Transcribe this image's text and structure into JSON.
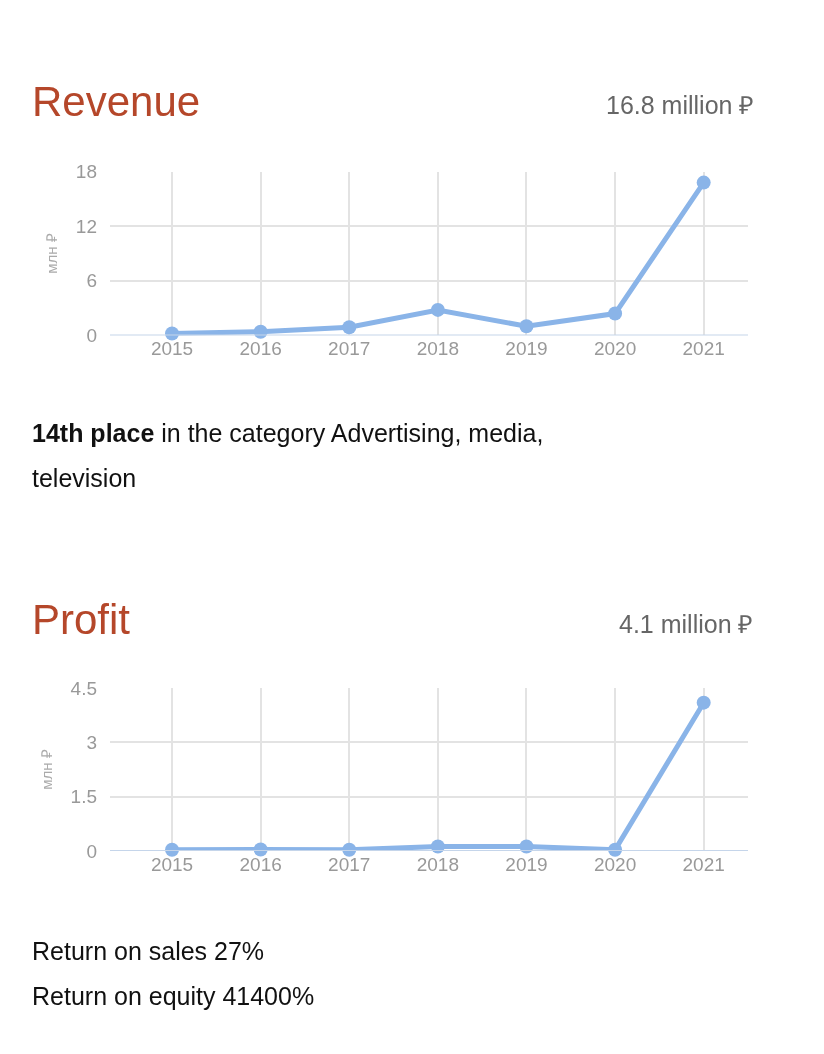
{
  "chart_data": [
    {
      "type": "line",
      "title": "Revenue",
      "subtitle": "16.8 million ₽",
      "ylabel": "млн ₽",
      "categories": [
        "2015",
        "2016",
        "2017",
        "2018",
        "2019",
        "2020",
        "2021"
      ],
      "series": [
        {
          "color": "#8ab4e8",
          "values": [
            0.2,
            0.4,
            0.9,
            2.8,
            1.0,
            2.4,
            16.8
          ]
        }
      ],
      "ylim": [
        0,
        18
      ],
      "yticks": [
        0,
        6,
        12,
        18
      ],
      "grid": true,
      "marker": "circle",
      "line_style": "solid",
      "annotations": [
        "14th place",
        "in the category Advertising, media, television"
      ]
    },
    {
      "type": "line",
      "title": "Profit",
      "subtitle": "4.1 million ₽",
      "ylabel": "млн ₽",
      "categories": [
        "2015",
        "2016",
        "2017",
        "2018",
        "2019",
        "2020",
        "2021"
      ],
      "series": [
        {
          "color": "#8ab4e8",
          "values": [
            0.03,
            0.04,
            0.03,
            0.12,
            0.12,
            0.03,
            4.1
          ]
        }
      ],
      "ylim": [
        0,
        4.5
      ],
      "yticks": [
        0,
        {
          "value": 1.5,
          "label": "1.5"
        },
        3,
        {
          "value": 4.5,
          "label": "4.5"
        }
      ],
      "grid": true,
      "marker": "circle",
      "line_style": "solid",
      "annotations": [
        "Return on sales 27%",
        "Return on equity 41400%"
      ]
    }
  ]
}
